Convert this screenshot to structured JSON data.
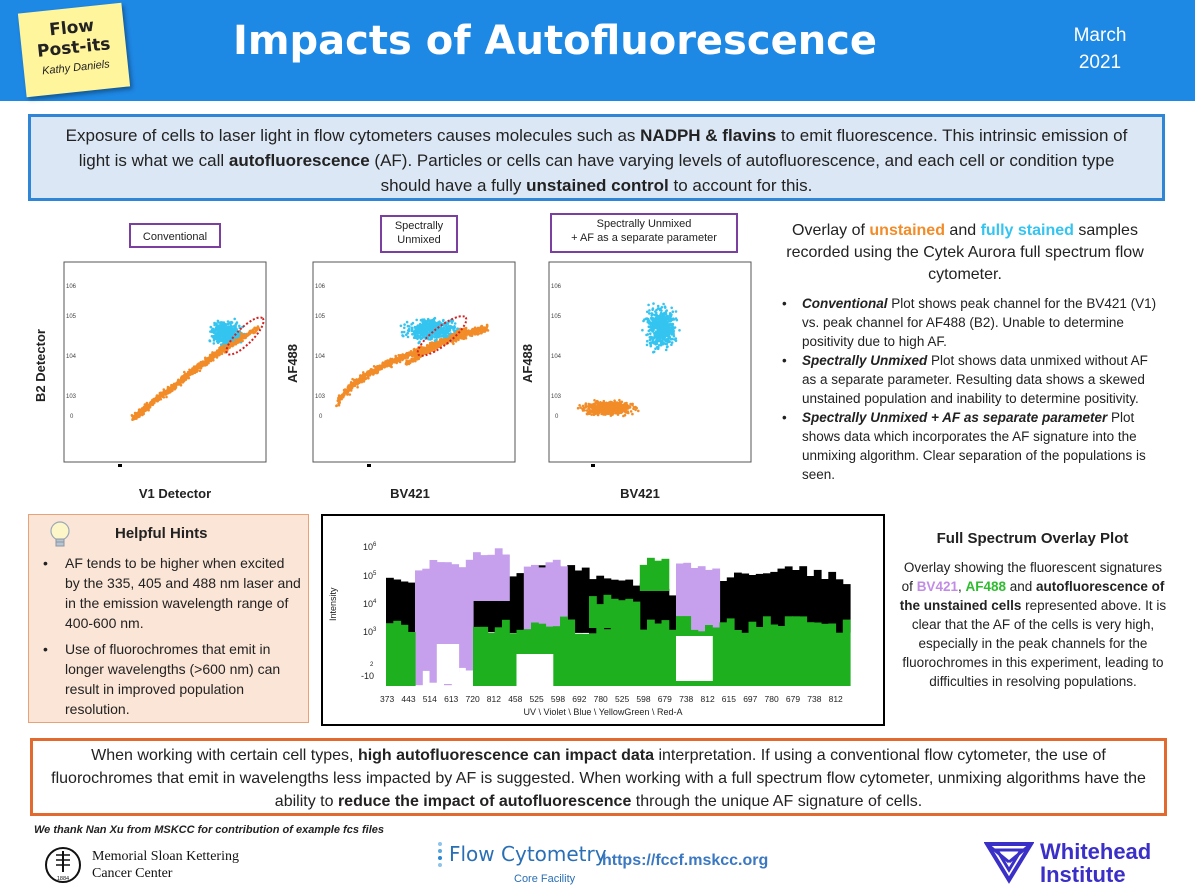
{
  "header": {
    "postit_line1": "Flow",
    "postit_line2": "Post-its",
    "postit_author": "Kathy Daniels",
    "title": "Impacts of Autofluorescence",
    "date_month": "March",
    "date_year": "2021"
  },
  "intro": {
    "t1": "Exposure of cells to laser light in flow cytometers causes molecules such as ",
    "b1": "NADPH & flavins",
    "t2": " to emit fluorescence. This intrinsic emission of light is what we call ",
    "b2": "autofluorescence",
    "t3": " (AF). Particles or cells can have varying levels of autofluorescence, and each cell or condition type should have a fully ",
    "b3": "unstained control",
    "t4": " to account for this."
  },
  "plots": [
    {
      "label": "Conventional",
      "ylabel": "B2 Detector",
      "xlabel": "V1 Detector"
    },
    {
      "label_l1": "Spectrally",
      "label_l2": "Unmixed",
      "ylabel": "AF488",
      "xlabel": "BV421"
    },
    {
      "label_l1": "Spectrally Unmixed",
      "label_l2": "+ AF as a separate parameter",
      "ylabel": "AF488",
      "xlabel": "BV421"
    }
  ],
  "tick_labels": {
    "t1": "10",
    "e2": "2",
    "e3": "3",
    "e4": "4",
    "e5": "5",
    "e6": "6",
    "zero": "0"
  },
  "overlay": {
    "t1": "Overlay of ",
    "unstained": "unstained",
    "t2": " and ",
    "stained": "fully stained",
    "t3": " samples recorded using the Cytek Aurora full spectrum flow cytometer."
  },
  "bullets": [
    {
      "em": "Conventional",
      "text": "  Plot shows peak channel for the BV421 (V1) vs. peak channel for AF488 (B2). Unable to determine positivity due to high AF."
    },
    {
      "em": "Spectrally Unmixed",
      "text": " Plot shows data unmixed without AF as a separate parameter. Resulting data shows a skewed unstained population and inability to determine positivity."
    },
    {
      "em": "Spectrally Unmixed + AF as separate parameter",
      "text": " Plot shows data which incorporates the AF signature into the unmixing algorithm. Clear separation of the populations is seen."
    }
  ],
  "hints": {
    "title": "Helpful Hints",
    "items": [
      "AF tends to be higher when excited by the 335, 405 and 488 nm laser and in the emission wavelength range of 400-600 nm.",
      "Use of fluorochromes that emit in longer wavelengths (>600 nm) can result in improved population resolution."
    ]
  },
  "spectrum": {
    "ylabel": "Intensity",
    "xlabel": "UV \\ Violet \\ Blue \\ YellowGreen \\ Red-A",
    "y_ticks": [
      "6",
      "5",
      "4",
      "3",
      "2"
    ],
    "y_tick_neg": "-10",
    "x_ticks": [
      "373",
      "443",
      "514",
      "613",
      "720",
      "812",
      "458",
      "525",
      "598",
      "692",
      "780",
      "525",
      "598",
      "679",
      "738",
      "812",
      "615",
      "697",
      "780",
      "679",
      "738",
      "812"
    ],
    "colors": {
      "black": "#000000",
      "purple": "#c6a0ec",
      "green": "#1fb01f"
    }
  },
  "full_spectrum": {
    "title": "Full Spectrum Overlay Plot",
    "t1": "Overlay showing the fluorescent signatures of ",
    "bv421": "BV421",
    "t2": ", ",
    "af488": "AF488",
    "t3": " and ",
    "b1": "autofluorescence of the unstained cells",
    "t4": " represented above. It is clear that the AF of the cells is very high, especially in the peak channels for the fluorochromes in this experiment, leading to difficulties in resolving populations."
  },
  "conclusion": {
    "t1": "When working with certain cell types, ",
    "b1": "high autofluorescence can impact data",
    "t2": " interpretation. If using a conventional flow cytometer, the use of fluorochromes that emit in wavelengths less impacted by AF is suggested. When working with a full spectrum flow cytometer, unmixing algorithms have the ability to ",
    "b2": "reduce the impact of autofluorescence",
    "t3": " through the unique AF signature of cells."
  },
  "footer": {
    "thanks": "We thank Nan Xu from MSKCC for contribution of example fcs files",
    "mskcc_l1": "Memorial Sloan Kettering",
    "mskcc_l2": "Cancer Center",
    "mskcc_year": "1884",
    "fc_title": "Flow Cytometry",
    "fc_sub": "Core Facility",
    "url": "https://fccf.mskcc.org",
    "wh_l1": "Whitehead",
    "wh_l2": "Institute"
  },
  "colors": {
    "header_blue": "#1e88e5",
    "unstained_orange": "#f28c28",
    "stained_cyan": "#35c4f0",
    "gate_red": "#d62020"
  }
}
